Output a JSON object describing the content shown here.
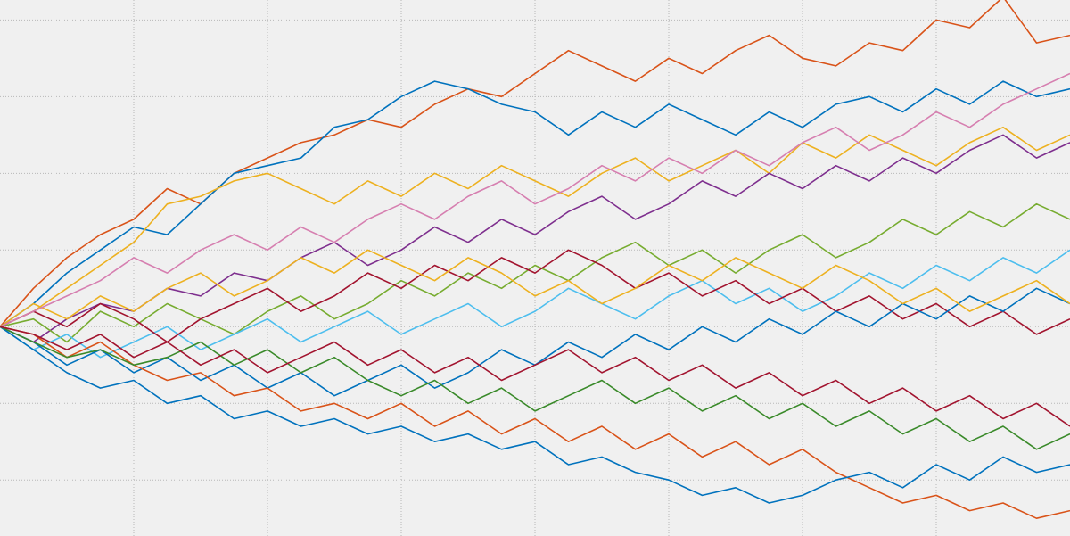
{
  "chart_data": {
    "type": "line",
    "grid": true,
    "xlim": [
      0,
      80
    ],
    "xticks": [
      10,
      20,
      30,
      40,
      50,
      60,
      70
    ],
    "ylim": [
      -2.73,
      4.26
    ],
    "yticks": [
      -2,
      -1,
      0,
      1,
      2,
      3,
      4
    ],
    "x": [
      0,
      2.5,
      5,
      7.5,
      10,
      12.5,
      15,
      17.5,
      20,
      22.5,
      25,
      27.5,
      30,
      32.5,
      35,
      37.5,
      40,
      42.5,
      45,
      47.5,
      50,
      52.5,
      55,
      57.5,
      60,
      62.5,
      65,
      67.5,
      70,
      72.5,
      75,
      77.5,
      80
    ],
    "series": [
      {
        "color": "#D95319",
        "values": [
          0,
          0.5,
          0.9,
          1.2,
          1.4,
          1.8,
          1.6,
          2.0,
          2.2,
          2.4,
          2.5,
          2.7,
          2.6,
          2.9,
          3.1,
          3.0,
          3.3,
          3.6,
          3.4,
          3.2,
          3.5,
          3.3,
          3.6,
          3.8,
          3.5,
          3.4,
          3.7,
          3.6,
          4.0,
          3.9,
          4.3,
          3.7,
          3.8
        ]
      },
      {
        "color": "#0072BD",
        "values": [
          0,
          0.3,
          0.7,
          1.0,
          1.3,
          1.2,
          1.6,
          2.0,
          2.1,
          2.2,
          2.6,
          2.7,
          3.0,
          3.2,
          3.1,
          2.9,
          2.8,
          2.5,
          2.8,
          2.6,
          2.9,
          2.7,
          2.5,
          2.8,
          2.6,
          2.9,
          3.0,
          2.8,
          3.1,
          2.9,
          3.2,
          3.0,
          3.1
        ]
      },
      {
        "color": "#EDB120",
        "values": [
          0,
          0.2,
          0.5,
          0.8,
          1.1,
          1.6,
          1.7,
          1.9,
          2.0,
          1.8,
          1.6,
          1.9,
          1.7,
          2.0,
          1.8,
          2.1,
          1.9,
          1.7,
          2.0,
          2.2,
          1.9,
          2.1,
          2.3,
          2.0,
          2.4,
          2.2,
          2.5,
          2.3,
          2.1,
          2.4,
          2.6,
          2.3,
          2.5
        ]
      },
      {
        "color": "#7E2F8E",
        "values": [
          0,
          -0.2,
          0.1,
          0.3,
          0.2,
          0.5,
          0.4,
          0.7,
          0.6,
          0.9,
          1.1,
          0.8,
          1.0,
          1.3,
          1.1,
          1.4,
          1.2,
          1.5,
          1.7,
          1.4,
          1.6,
          1.9,
          1.7,
          2.0,
          1.8,
          2.1,
          1.9,
          2.2,
          2.0,
          2.3,
          2.5,
          2.2,
          2.4
        ]
      },
      {
        "color": "#77AC30",
        "values": [
          0,
          0.1,
          -0.2,
          0.2,
          0.0,
          0.3,
          0.1,
          -0.1,
          0.2,
          0.4,
          0.1,
          0.3,
          0.6,
          0.4,
          0.7,
          0.5,
          0.8,
          0.6,
          0.9,
          1.1,
          0.8,
          1.0,
          0.7,
          1.0,
          1.2,
          0.9,
          1.1,
          1.4,
          1.2,
          1.5,
          1.3,
          1.6,
          1.4
        ]
      },
      {
        "color": "#4DBEEE",
        "values": [
          0,
          -0.3,
          -0.1,
          -0.4,
          -0.2,
          0.0,
          -0.3,
          -0.1,
          0.1,
          -0.2,
          0.0,
          0.2,
          -0.1,
          0.1,
          0.3,
          0.0,
          0.2,
          0.5,
          0.3,
          0.1,
          0.4,
          0.6,
          0.3,
          0.5,
          0.2,
          0.4,
          0.7,
          0.5,
          0.8,
          0.6,
          0.9,
          0.7,
          1.0
        ]
      },
      {
        "color": "#A2142F",
        "values": [
          0,
          0.2,
          0.0,
          0.3,
          0.1,
          -0.2,
          0.1,
          0.3,
          0.5,
          0.2,
          0.4,
          0.7,
          0.5,
          0.8,
          0.6,
          0.9,
          0.7,
          1.0,
          0.8,
          0.5,
          0.7,
          0.4,
          0.6,
          0.3,
          0.5,
          0.2,
          0.4,
          0.1,
          0.3,
          0.0,
          0.2,
          -0.1,
          0.1
        ]
      },
      {
        "color": "#0072BD",
        "values": [
          0,
          -0.2,
          -0.5,
          -0.3,
          -0.6,
          -0.4,
          -0.7,
          -0.5,
          -0.8,
          -0.6,
          -0.9,
          -0.7,
          -0.5,
          -0.8,
          -0.6,
          -0.3,
          -0.5,
          -0.2,
          -0.4,
          -0.1,
          -0.3,
          0.0,
          -0.2,
          0.1,
          -0.1,
          0.2,
          0.0,
          0.3,
          0.1,
          0.4,
          0.2,
          0.5,
          0.3
        ]
      },
      {
        "color": "#D95319",
        "values": [
          0,
          -0.1,
          -0.4,
          -0.2,
          -0.5,
          -0.7,
          -0.6,
          -0.9,
          -0.8,
          -1.1,
          -1.0,
          -1.2,
          -1.0,
          -1.3,
          -1.1,
          -1.4,
          -1.2,
          -1.5,
          -1.3,
          -1.6,
          -1.4,
          -1.7,
          -1.5,
          -1.8,
          -1.6,
          -1.9,
          -2.1,
          -2.3,
          -2.2,
          -2.4,
          -2.3,
          -2.5,
          -2.4
        ]
      },
      {
        "color": "#0072BD",
        "values": [
          0,
          -0.3,
          -0.6,
          -0.8,
          -0.7,
          -1.0,
          -0.9,
          -1.2,
          -1.1,
          -1.3,
          -1.2,
          -1.4,
          -1.3,
          -1.5,
          -1.4,
          -1.6,
          -1.5,
          -1.8,
          -1.7,
          -1.9,
          -2.0,
          -2.2,
          -2.1,
          -2.3,
          -2.2,
          -2.0,
          -1.9,
          -2.1,
          -1.8,
          -2.0,
          -1.7,
          -1.9,
          -1.8
        ]
      },
      {
        "color": "#EDB120",
        "values": [
          0,
          0.3,
          0.1,
          0.4,
          0.2,
          0.5,
          0.7,
          0.4,
          0.6,
          0.9,
          0.7,
          1.0,
          0.8,
          0.6,
          0.9,
          0.7,
          0.4,
          0.6,
          0.3,
          0.5,
          0.8,
          0.6,
          0.9,
          0.7,
          0.5,
          0.8,
          0.6,
          0.3,
          0.5,
          0.2,
          0.4,
          0.6,
          0.3
        ]
      },
      {
        "color": "#3a8a2a",
        "values": [
          0,
          -0.2,
          -0.4,
          -0.3,
          -0.5,
          -0.4,
          -0.2,
          -0.5,
          -0.3,
          -0.6,
          -0.4,
          -0.7,
          -0.9,
          -0.7,
          -1.0,
          -0.8,
          -1.1,
          -0.9,
          -0.7,
          -1.0,
          -0.8,
          -1.1,
          -0.9,
          -1.2,
          -1.0,
          -1.3,
          -1.1,
          -1.4,
          -1.2,
          -1.5,
          -1.3,
          -1.6,
          -1.4
        ]
      },
      {
        "color": "#d67fb0",
        "values": [
          0,
          0.2,
          0.4,
          0.6,
          0.9,
          0.7,
          1.0,
          1.2,
          1.0,
          1.3,
          1.1,
          1.4,
          1.6,
          1.4,
          1.7,
          1.9,
          1.6,
          1.8,
          2.1,
          1.9,
          2.2,
          2.0,
          2.3,
          2.1,
          2.4,
          2.6,
          2.3,
          2.5,
          2.8,
          2.6,
          2.9,
          3.1,
          3.3
        ]
      },
      {
        "color": "#A2142F",
        "values": [
          0,
          -0.1,
          -0.3,
          -0.1,
          -0.4,
          -0.2,
          -0.5,
          -0.3,
          -0.6,
          -0.4,
          -0.2,
          -0.5,
          -0.3,
          -0.6,
          -0.4,
          -0.7,
          -0.5,
          -0.3,
          -0.6,
          -0.4,
          -0.7,
          -0.5,
          -0.8,
          -0.6,
          -0.9,
          -0.7,
          -1.0,
          -0.8,
          -1.1,
          -0.9,
          -1.2,
          -1.0,
          -1.3
        ]
      }
    ]
  }
}
